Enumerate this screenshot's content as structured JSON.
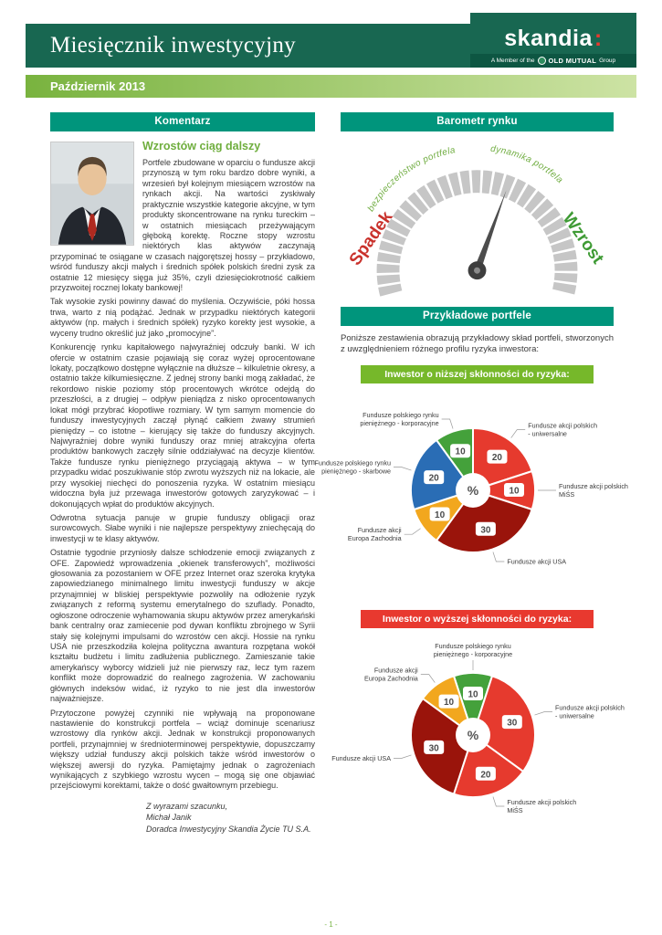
{
  "header": {
    "title": "Miesięcznik inwestycyjny",
    "issue_date": "Październik 2013",
    "logo": {
      "brand": "skandia",
      "member_of": "A Member of the",
      "old_mutual": "OLD MUTUAL",
      "group": "Group"
    }
  },
  "commentary": {
    "header": "Komentarz",
    "article_title": "Wzrostów ciąg dalszy",
    "paragraphs": [
      "Portfele zbudowane w oparciu o fundusze akcji przynoszą w tym roku bardzo dobre wyniki, a wrzesień był kolejnym miesiącem wzrostów na rynkach akcji. Na wartości zyskiwały praktycznie wszystkie kategorie akcyjne, w tym produkty skoncentrowane na rynku tureckim – w ostatnich miesiącach przeżywającym głęboką korektę. Roczne stopy wzrostu niektórych klas aktywów zaczynają przypominać te osiągane w czasach najgorętszej hossy – przykładowo, wśród funduszy akcji małych i średnich spółek polskich średni zysk za ostatnie 12 miesięcy sięga już 35%, czyli dziesięciokrotność całkiem przyzwoitej rocznej lokaty bankowej!",
      "Tak wysokie zyski powinny dawać do myślenia. Oczywiście, póki hossa trwa, warto z nią podążać. Jednak w przypadku niektórych kategorii aktywów (np. małych i średnich spółek) ryzyko korekty jest wysokie, a wyceny trudno określić już jako „promocyjne”.",
      "Konkurencję rynku kapitałowego najwyraźniej odczuły banki. W ich ofercie w ostatnim czasie pojawiają się coraz wyżej oprocentowane lokaty, początkowo dostępne wyłącznie na dłuższe – kilkuletnie okresy, a ostatnio także kilkumiesięczne. Z jednej strony banki mogą zakładać, że rekordowo niskie poziomy stóp procentowych wkrótce odejdą do przeszłości, a z drugiej – odpływ pieniądza z nisko oprocentowanych lokat mógł przybrać kłopotliwe rozmiary. W tym samym momencie do funduszy inwestycyjnych zaczął płynąć całkiem żwawy strumień pieniędzy – co istotne – kierujący się także do funduszy akcyjnych. Najwyraźniej dobre wyniki funduszy oraz mniej atrakcyjna oferta produktów bankowych zaczęły silnie oddziaływać na decyzje klientów. Także fundusze rynku pieniężnego przyciągają aktywa – w tym przypadku widać poszukiwanie stóp zwrotu wyższych niż na lokacie, ale przy wysokiej niechęci do ponoszenia ryzyka. W ostatnim miesiącu widoczna była już przewaga inwestorów gotowych zaryzykować – i dokonujących wpłat do produktów akcyjnych.",
      "Odwrotna sytuacja panuje w grupie funduszy obligacji oraz surowcowych. Słabe wyniki i nie najlepsze perspektywy zniechęcają do inwestycji w te klasy aktywów.",
      "Ostatnie tygodnie przyniosły dalsze schłodzenie emocji związanych z OFE. Zapowiedź wprowadzenia „okienek transferowych”, możliwości głosowania za pozostaniem w OFE przez Internet oraz szeroka krytyka zapowiedzianego minimalnego limitu inwestycji funduszy w akcje przynajmniej w bliskiej perspektywie pozwoliły na odłożenie ryzyk związanych z reformą systemu emerytalnego do szuflady. Ponadto, ogłoszone odroczenie wyhamowania skupu aktywów przez amerykański bank centralny oraz zamiecenie pod dywan konfliktu zbrojnego w Syrii stały się kolejnymi impulsami do wzrostów cen akcji. Hossie na rynku USA nie przeszkodziła kolejna polityczna awantura rozpętana wokół kształtu budżetu i limitu zadłużenia publicznego. Zamieszanie takie amerykańscy wyborcy widzieli już nie pierwszy raz, lecz tym razem konflikt może doprowadzić do realnego zagrożenia. W zachowaniu głównych indeksów widać, iż ryzyko to nie jest dla inwestorów najważniejsze.",
      "Przytoczone powyżej czynniki nie wpływają na proponowane nastawienie do konstrukcji portfela – wciąż dominuje scenariusz wzrostowy dla rynków akcji. Jednak w konstrukcji proponowanych portfeli, przynajmniej w średnioterminowej perspektywie, dopuszczamy większy udział funduszy akcji polskich także wśród inwestorów o większej awersji do ryzyka. Pamiętajmy jednak o zagrożeniach wynikających z szybkiego wzrostu wycen – mogą się one objawiać przejściowymi korektami, także o dość gwałtownym przebiegu."
    ],
    "signature": {
      "closing": "Z wyrazami szacunku,",
      "name": "Michał Janik",
      "role": "Doradca Inwestycyjny Skandia Życie TU S.A."
    }
  },
  "barometer": {
    "header": "Barometr rynku",
    "left_label": "Spadek",
    "right_label": "Wzrost",
    "left_arc_label": "bezpieczeństwo portfela",
    "right_arc_label": "dynamika portfela",
    "needle_angle_deg": 20
  },
  "portfolios": {
    "header": "Przykładowe portfele",
    "intro": "Poniższe zestawienia obrazują przykładowy skład portfeli, stworzonych z uwzględnieniem różnego profilu ryzyka inwestora:",
    "low_risk": {
      "banner": "Inwestor o niższej skłonności do ryzyka:"
    },
    "high_risk": {
      "banner": "Inwestor o wyższej skłonności do ryzyka:"
    }
  },
  "chart_data": [
    {
      "type": "pie",
      "title": "Inwestor o niższej skłonności do ryzyka:",
      "center_label": "%",
      "start_angle_deg": -36,
      "slices": [
        {
          "label": "Fundusze polskiego rynku pieniężnego - korporacyjne",
          "label_lines": [
            "Fundusze polskiego rynku",
            "pieniężnego - korporacyjne"
          ],
          "value": 10,
          "color": "#44a13b"
        },
        {
          "label": "Fundusze akcji polskich - uniwersalne",
          "label_lines": [
            "Fundusze akcji polskich",
            "- uniwersalne"
          ],
          "value": 20,
          "color": "#e63a2e"
        },
        {
          "label": "Fundusze akcji polskich MiŚS",
          "label_lines": [
            "Fundusze akcji polskich",
            "MiŚS"
          ],
          "value": 10,
          "color": "#e63a2e"
        },
        {
          "label": "Fundusze akcji USA",
          "label_lines": [
            "Fundusze akcji USA"
          ],
          "value": 30,
          "color": "#9a140b"
        },
        {
          "label": "Fundusze akcji Europa Zachodnia",
          "label_lines": [
            "Fundusze akcji",
            "Europa Zachodnia"
          ],
          "value": 10,
          "color": "#f2a71e"
        },
        {
          "label": "Fundusze polskiego rynku pieniężnego - skarbowe",
          "label_lines": [
            "Fundusze polskiego rynku",
            "pieniężnego - skarbowe"
          ],
          "value": 20,
          "color": "#2a6db5"
        }
      ]
    },
    {
      "type": "pie",
      "title": "Inwestor o wyższej skłonności do ryzyka:",
      "center_label": "%",
      "start_angle_deg": -18,
      "slices": [
        {
          "label": "Fundusze polskiego rynku pieniężnego - korporacyjne",
          "label_lines": [
            "Fundusze polskiego rynku",
            "pieniężnego - korporacyjne"
          ],
          "value": 10,
          "color": "#44a13b"
        },
        {
          "label": "Fundusze akcji polskich - uniwersalne",
          "label_lines": [
            "Fundusze akcji polskich",
            "- uniwersalne"
          ],
          "value": 30,
          "color": "#e63a2e"
        },
        {
          "label": "Fundusze akcji polskich MiŚS",
          "label_lines": [
            "Fundusze akcji polskich",
            "MiŚS"
          ],
          "value": 20,
          "color": "#e63a2e"
        },
        {
          "label": "Fundusze akcji USA",
          "label_lines": [
            "Fundusze akcji USA"
          ],
          "value": 30,
          "color": "#9a140b"
        },
        {
          "label": "Fundusze akcji Europa Zachodnia",
          "label_lines": [
            "Fundusze akcji",
            "Europa Zachodnia"
          ],
          "value": 10,
          "color": "#f2a71e"
        }
      ]
    },
    {
      "type": "gauge",
      "title": "Barometr rynku",
      "min_label": "Spadek",
      "max_label": "Wzrost",
      "arc_labels": [
        "bezpieczeństwo portfela",
        "dynamika portfela"
      ],
      "needle_position": "slightly right of vertical (towards Wzrost)"
    }
  ],
  "footer": {
    "page_number": "- 1 -"
  }
}
